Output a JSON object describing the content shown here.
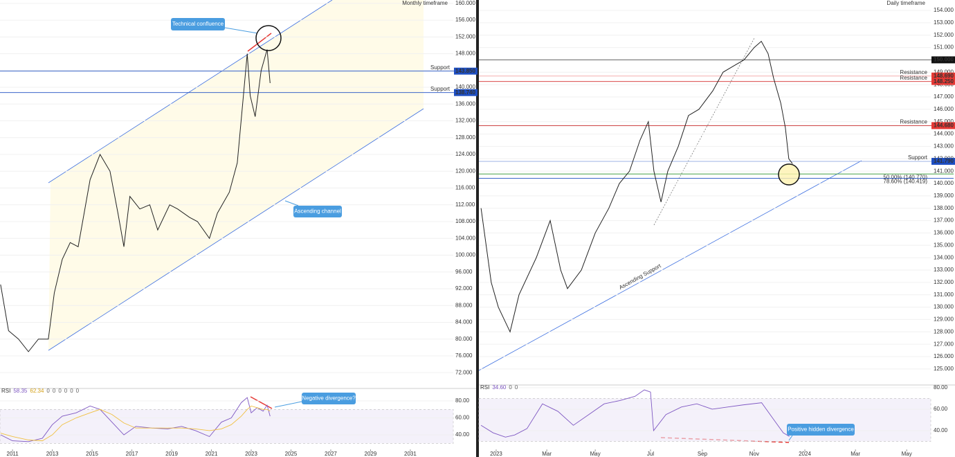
{
  "chart_data": [
    {
      "type": "line",
      "title": "Monthly timeframe",
      "color": "#222222",
      "x": [
        2010.4,
        2010.8,
        2011.3,
        2011.8,
        2012.3,
        2012.8,
        2013.1,
        2013.5,
        2013.9,
        2014.3,
        2014.9,
        2015.4,
        2015.9,
        2016.3,
        2016.6,
        2016.9,
        2017.4,
        2017.9,
        2018.3,
        2018.9,
        2019.3,
        2019.9,
        2020.3,
        2020.9,
        2021.3,
        2021.9,
        2022.3,
        2022.8,
        2022.95,
        2023.2,
        2023.5,
        2023.8,
        2023.95
      ],
      "values": [
        93,
        82,
        80,
        77,
        80,
        80,
        91,
        99,
        103,
        102,
        118,
        124,
        120,
        110,
        102,
        114,
        111,
        112,
        106,
        112,
        111,
        109,
        108,
        104,
        110,
        115,
        122,
        148,
        138,
        133,
        144,
        149,
        141
      ],
      "xlim": [
        2010.37,
        2033.16
      ],
      "ylim": [
        68.4,
        160.8
      ],
      "yticks": [
        {
          "value": 72,
          "label": "72.000"
        },
        {
          "value": 76,
          "label": "76.000"
        },
        {
          "value": 80,
          "label": "80.000"
        },
        {
          "value": 84,
          "label": "84.000"
        },
        {
          "value": 88,
          "label": "88.000"
        },
        {
          "value": 92,
          "label": "92.000"
        },
        {
          "value": 96,
          "label": "96.000"
        },
        {
          "value": 100,
          "label": "100.000"
        },
        {
          "value": 104,
          "label": "104.000"
        },
        {
          "value": 108,
          "label": "108.000"
        },
        {
          "value": 112,
          "label": "112.000"
        },
        {
          "value": 116,
          "label": "116.000"
        },
        {
          "value": 120,
          "label": "120.000"
        },
        {
          "value": 124,
          "label": "124.000"
        },
        {
          "value": 128,
          "label": "128.000"
        },
        {
          "value": 132,
          "label": "132.000"
        },
        {
          "value": 136,
          "label": "136.000"
        },
        {
          "value": 140,
          "label": "140.000"
        },
        {
          "value": 144,
          "label": "144.000"
        },
        {
          "value": 148,
          "label": "148.000"
        },
        {
          "value": 152,
          "label": "152.000"
        },
        {
          "value": 156,
          "label": "156.000"
        },
        {
          "value": 160,
          "label": "160.000"
        }
      ],
      "hlines": [
        {
          "name": "Support",
          "value": 143.85,
          "value_label": "143.850",
          "color": "#1e4fc2"
        },
        {
          "name": "Support",
          "value": 138.74,
          "value_label": "138.740",
          "color": "#1e4fc2"
        }
      ],
      "annotations": [
        "Technical confluence",
        "Ascending channel"
      ]
    },
    {
      "type": "line",
      "title": "RSI",
      "header_values": [
        58.35,
        62.34,
        0,
        0,
        0,
        0,
        0,
        0
      ],
      "x": [
        2010.4,
        2011.0,
        2011.8,
        2012.5,
        2013.0,
        2013.5,
        2014.2,
        2014.9,
        2015.4,
        2016.0,
        2016.6,
        2017.2,
        2018.0,
        2018.8,
        2019.5,
        2020.2,
        2020.9,
        2021.5,
        2022.0,
        2022.5,
        2022.8,
        2023.0,
        2023.3,
        2023.6,
        2023.8,
        2023.95
      ],
      "series": [
        {
          "color": "#7e57c2",
          "values": [
            40,
            33,
            32,
            36,
            52,
            62,
            66,
            74,
            70,
            55,
            40,
            50,
            48,
            47,
            50,
            45,
            38,
            55,
            60,
            78,
            84,
            66,
            72,
            68,
            75,
            62
          ]
        },
        {
          "color": "#f0c040",
          "values": [
            42,
            38,
            34,
            33,
            40,
            52,
            60,
            66,
            70,
            64,
            54,
            48,
            48,
            48,
            48,
            47,
            45,
            47,
            52,
            62,
            70,
            74,
            72,
            70,
            70,
            68
          ]
        }
      ],
      "band": [
        30,
        70
      ],
      "xlim": [
        2010.37,
        2033.16
      ],
      "ylim": [
        23.7,
        93.9
      ],
      "yticks": [
        {
          "value": 40,
          "label": "40.00"
        },
        {
          "value": 60,
          "label": "60.00"
        },
        {
          "value": 80,
          "label": "80.00"
        }
      ],
      "xticks": [
        2011,
        2013,
        2015,
        2017,
        2019,
        2021,
        2023,
        2025,
        2027,
        2029,
        2031
      ],
      "annotations": [
        "Negative divergence?"
      ]
    },
    {
      "type": "line",
      "title": "Daily timeframe",
      "color": "#222222",
      "x": [
        2022.951,
        2022.984,
        2023.007,
        2023.045,
        2023.074,
        2023.13,
        2023.175,
        2023.209,
        2023.231,
        2023.276,
        2023.321,
        2023.365,
        2023.399,
        2023.432,
        2023.466,
        2023.493,
        2023.511,
        2023.534,
        2023.556,
        2023.59,
        2023.623,
        2023.657,
        2023.702,
        2023.735,
        2023.769,
        2023.803,
        2023.836,
        2023.859,
        2023.881,
        2023.899,
        2023.922,
        2023.937,
        2023.948,
        2023.96
      ],
      "values": [
        138,
        132,
        130,
        128,
        131,
        134,
        137,
        133,
        131.5,
        133,
        136,
        138,
        140,
        141,
        143.5,
        145,
        141,
        138.5,
        141,
        143,
        145.5,
        146,
        147.5,
        149,
        149.5,
        150,
        151,
        151.5,
        150.5,
        148.5,
        146.5,
        144.5,
        142,
        141.6
      ],
      "xlim": [
        2022.944,
        2024.408
      ],
      "ylim": [
        123.76,
        154.84
      ],
      "yticks": [
        {
          "value": 125,
          "label": "125.000"
        },
        {
          "value": 126,
          "label": "126.000"
        },
        {
          "value": 127,
          "label": "127.000"
        },
        {
          "value": 128,
          "label": "128.000"
        },
        {
          "value": 129,
          "label": "129.000"
        },
        {
          "value": 130,
          "label": "130.000"
        },
        {
          "value": 131,
          "label": "131.000"
        },
        {
          "value": 132,
          "label": "132.000"
        },
        {
          "value": 133,
          "label": "133.000"
        },
        {
          "value": 134,
          "label": "134.000"
        },
        {
          "value": 135,
          "label": "135.000"
        },
        {
          "value": 136,
          "label": "136.000"
        },
        {
          "value": 137,
          "label": "137.000"
        },
        {
          "value": 138,
          "label": "138.000"
        },
        {
          "value": 139,
          "label": "139.000"
        },
        {
          "value": 140,
          "label": "140.000"
        },
        {
          "value": 141,
          "label": "141.000"
        },
        {
          "value": 142,
          "label": "142.000"
        },
        {
          "value": 143,
          "label": "143.000"
        },
        {
          "value": 144,
          "label": "144.000"
        },
        {
          "value": 145,
          "label": "145.000"
        },
        {
          "value": 146,
          "label": "146.000"
        },
        {
          "value": 147,
          "label": "147.000"
        },
        {
          "value": 148,
          "label": "148.000"
        },
        {
          "value": 149,
          "label": "149.000"
        },
        {
          "value": 150,
          "label": "150.000"
        },
        {
          "value": 151,
          "label": "151.000"
        },
        {
          "value": 152,
          "label": "152.000"
        },
        {
          "value": 153,
          "label": "153.000"
        },
        {
          "value": 154,
          "label": "154.000"
        }
      ],
      "hlines": [
        {
          "value": 150,
          "value_label": "150.000",
          "color": "#555555",
          "box": "#111111"
        },
        {
          "name": "Resistance",
          "value": 148.69,
          "value_label": "148.690",
          "color": "#f2a0a0",
          "box": "#e53935"
        },
        {
          "name": "Resistance",
          "value": 148.25,
          "value_label": "148.250",
          "color": "#d32f2f",
          "box": "#e53935"
        },
        {
          "name": "Resistance",
          "value": 144.68,
          "value_label": "144.680",
          "color": "#c62828",
          "box": "#e53935"
        },
        {
          "name": "Support",
          "value": 141.79,
          "value_label": "141.790",
          "color": "#90a8e0",
          "box": "#1e4fc2"
        },
        {
          "name": "50.00% (140.770)",
          "value": 140.77,
          "color": "#43a047"
        },
        {
          "name": "78.60% (140.419)",
          "value": 140.419,
          "color": "#1e4fc2"
        }
      ],
      "annotations": [
        "Ascending Support"
      ]
    },
    {
      "type": "line",
      "title": "RSI",
      "header_values": [
        {
          "value": 34.6,
          "label": "34.60"
        },
        0,
        0
      ],
      "x": [
        2022.951,
        2022.99,
        2023.03,
        2023.06,
        2023.1,
        2023.15,
        2023.2,
        2023.25,
        2023.3,
        2023.35,
        2023.4,
        2023.45,
        2023.48,
        2023.5,
        2023.51,
        2023.55,
        2023.6,
        2023.65,
        2023.7,
        2023.75,
        2023.8,
        2023.86,
        2023.9,
        2023.93,
        2023.95
      ],
      "series": [
        {
          "color": "#7e57c2",
          "values": [
            45,
            38,
            34,
            36,
            42,
            65,
            58,
            45,
            55,
            65,
            68,
            72,
            78,
            76,
            40,
            55,
            62,
            65,
            60,
            62,
            64,
            66,
            50,
            38,
            34.6
          ]
        }
      ],
      "band": [
        30,
        70
      ],
      "xlim": [
        2022.944,
        2024.408
      ],
      "ylim": [
        23.2,
        81.9
      ],
      "yticks": [
        {
          "value": 40,
          "label": "40.00"
        },
        {
          "value": 60,
          "label": "60.00"
        },
        {
          "value": 80,
          "label": "80.00"
        }
      ],
      "xticks": [
        {
          "value": 2023,
          "label": "2023"
        },
        {
          "value": 2023.164,
          "label": "Mar"
        },
        {
          "value": 2023.321,
          "label": "May"
        },
        {
          "value": 2023.5,
          "label": "Jul"
        },
        {
          "value": 2023.668,
          "label": "Sep"
        },
        {
          "value": 2023.836,
          "label": "Nov"
        },
        {
          "value": 2024,
          "label": "2024"
        },
        {
          "value": 2024.164,
          "label": "Mar"
        },
        {
          "value": 2024.33,
          "label": "May"
        }
      ],
      "annotations": [
        "Positive hidden divergence"
      ]
    }
  ]
}
